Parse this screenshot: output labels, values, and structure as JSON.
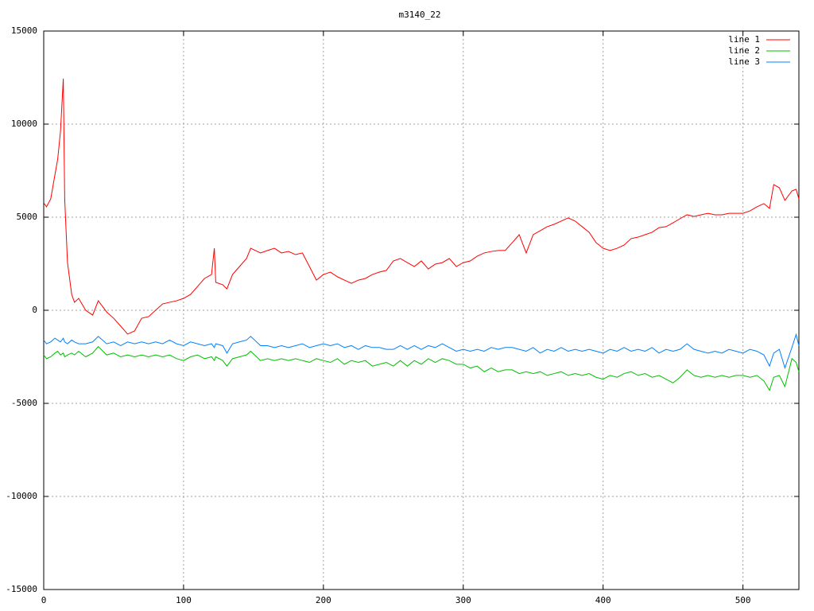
{
  "chart_data": {
    "type": "line",
    "title": "m3140_22",
    "x": [
      0,
      2,
      5,
      8,
      10,
      12,
      14,
      15,
      17,
      20,
      22,
      25,
      30,
      35,
      39,
      45,
      50,
      55,
      60,
      65,
      70,
      75,
      80,
      85,
      90,
      95,
      100,
      105,
      110,
      115,
      120,
      122,
      123,
      128,
      131,
      135,
      140,
      145,
      148,
      155,
      160,
      165,
      170,
      175,
      180,
      185,
      190,
      195,
      200,
      205,
      210,
      215,
      220,
      225,
      230,
      235,
      240,
      245,
      250,
      255,
      260,
      265,
      270,
      275,
      280,
      285,
      290,
      295,
      300,
      305,
      310,
      315,
      320,
      325,
      330,
      335,
      340,
      345,
      350,
      355,
      360,
      365,
      370,
      375,
      380,
      385,
      390,
      395,
      400,
      405,
      410,
      415,
      420,
      425,
      430,
      435,
      440,
      445,
      450,
      455,
      460,
      465,
      470,
      475,
      480,
      485,
      490,
      495,
      500,
      505,
      510,
      515,
      519,
      522,
      526,
      530,
      535,
      538,
      540
    ],
    "series": [
      {
        "name": "line 1",
        "color": "#ff0000",
        "values": [
          5770,
          5560,
          5980,
          7270,
          8120,
          9620,
          12440,
          5980,
          2560,
          850,
          430,
          640,
          0,
          -260,
          510,
          -90,
          -430,
          -850,
          -1280,
          -1110,
          -430,
          -340,
          0,
          340,
          430,
          510,
          640,
          850,
          1280,
          1710,
          1920,
          3330,
          1500,
          1370,
          1150,
          1920,
          2350,
          2780,
          3330,
          3080,
          3210,
          3330,
          3080,
          3160,
          2990,
          3080,
          2350,
          1620,
          1920,
          2050,
          1800,
          1620,
          1450,
          1620,
          1710,
          1920,
          2050,
          2140,
          2650,
          2780,
          2560,
          2350,
          2650,
          2220,
          2480,
          2560,
          2780,
          2350,
          2560,
          2650,
          2910,
          3080,
          3160,
          3210,
          3210,
          3630,
          4060,
          3080,
          4060,
          4270,
          4490,
          4620,
          4790,
          4960,
          4790,
          4490,
          4190,
          3630,
          3330,
          3210,
          3330,
          3500,
          3850,
          3930,
          4060,
          4190,
          4440,
          4490,
          4700,
          4920,
          5130,
          5040,
          5130,
          5210,
          5130,
          5130,
          5210,
          5210,
          5210,
          5340,
          5560,
          5730,
          5470,
          6750,
          6580,
          5900,
          6410,
          6500,
          5980
        ]
      },
      {
        "name": "line 2",
        "color": "#00c000",
        "values": [
          -2400,
          -2600,
          -2500,
          -2300,
          -2200,
          -2400,
          -2300,
          -2500,
          -2400,
          -2300,
          -2400,
          -2200,
          -2500,
          -2300,
          -1950,
          -2400,
          -2300,
          -2500,
          -2400,
          -2500,
          -2400,
          -2500,
          -2400,
          -2500,
          -2400,
          -2600,
          -2700,
          -2500,
          -2400,
          -2600,
          -2500,
          -2700,
          -2500,
          -2700,
          -3000,
          -2600,
          -2500,
          -2400,
          -2200,
          -2700,
          -2600,
          -2700,
          -2600,
          -2700,
          -2600,
          -2700,
          -2800,
          -2600,
          -2700,
          -2800,
          -2600,
          -2900,
          -2700,
          -2800,
          -2700,
          -3000,
          -2900,
          -2800,
          -3000,
          -2700,
          -3000,
          -2700,
          -2900,
          -2600,
          -2800,
          -2600,
          -2700,
          -2900,
          -2900,
          -3100,
          -3000,
          -3300,
          -3100,
          -3300,
          -3200,
          -3200,
          -3400,
          -3300,
          -3400,
          -3300,
          -3500,
          -3400,
          -3300,
          -3500,
          -3400,
          -3500,
          -3400,
          -3600,
          -3700,
          -3500,
          -3600,
          -3400,
          -3300,
          -3500,
          -3400,
          -3600,
          -3500,
          -3700,
          -3900,
          -3600,
          -3200,
          -3500,
          -3600,
          -3500,
          -3600,
          -3500,
          -3600,
          -3500,
          -3500,
          -3600,
          -3500,
          -3800,
          -4300,
          -3600,
          -3500,
          -4100,
          -2600,
          -2800,
          -3300
        ]
      },
      {
        "name": "line 3",
        "color": "#0080ff",
        "values": [
          -1600,
          -1800,
          -1700,
          -1500,
          -1600,
          -1700,
          -1500,
          -1700,
          -1800,
          -1600,
          -1700,
          -1800,
          -1800,
          -1700,
          -1400,
          -1800,
          -1700,
          -1900,
          -1700,
          -1800,
          -1700,
          -1800,
          -1700,
          -1800,
          -1600,
          -1800,
          -1900,
          -1700,
          -1800,
          -1900,
          -1800,
          -2000,
          -1800,
          -1900,
          -2300,
          -1800,
          -1700,
          -1600,
          -1400,
          -1900,
          -1900,
          -2000,
          -1900,
          -2000,
          -1900,
          -1800,
          -2000,
          -1900,
          -1800,
          -1900,
          -1800,
          -2000,
          -1900,
          -2100,
          -1900,
          -2000,
          -2000,
          -2100,
          -2100,
          -1900,
          -2100,
          -1900,
          -2100,
          -1900,
          -2000,
          -1800,
          -2000,
          -2200,
          -2100,
          -2200,
          -2100,
          -2200,
          -2000,
          -2100,
          -2000,
          -2000,
          -2100,
          -2200,
          -2000,
          -2300,
          -2100,
          -2200,
          -2000,
          -2200,
          -2100,
          -2200,
          -2100,
          -2200,
          -2300,
          -2100,
          -2200,
          -2000,
          -2200,
          -2100,
          -2200,
          -2000,
          -2300,
          -2100,
          -2200,
          -2100,
          -1800,
          -2100,
          -2200,
          -2300,
          -2200,
          -2300,
          -2100,
          -2200,
          -2300,
          -2100,
          -2200,
          -2400,
          -3000,
          -2300,
          -2100,
          -3100,
          -2000,
          -1300,
          -1900
        ]
      }
    ],
    "xlim": [
      0,
      540
    ],
    "xticks": [
      0,
      100,
      200,
      300,
      400,
      500
    ],
    "ylim": [
      -15000,
      15000
    ],
    "yticks": [
      -15000,
      -10000,
      -5000,
      0,
      5000,
      10000,
      15000
    ],
    "grid": true,
    "legend": "upper right"
  }
}
